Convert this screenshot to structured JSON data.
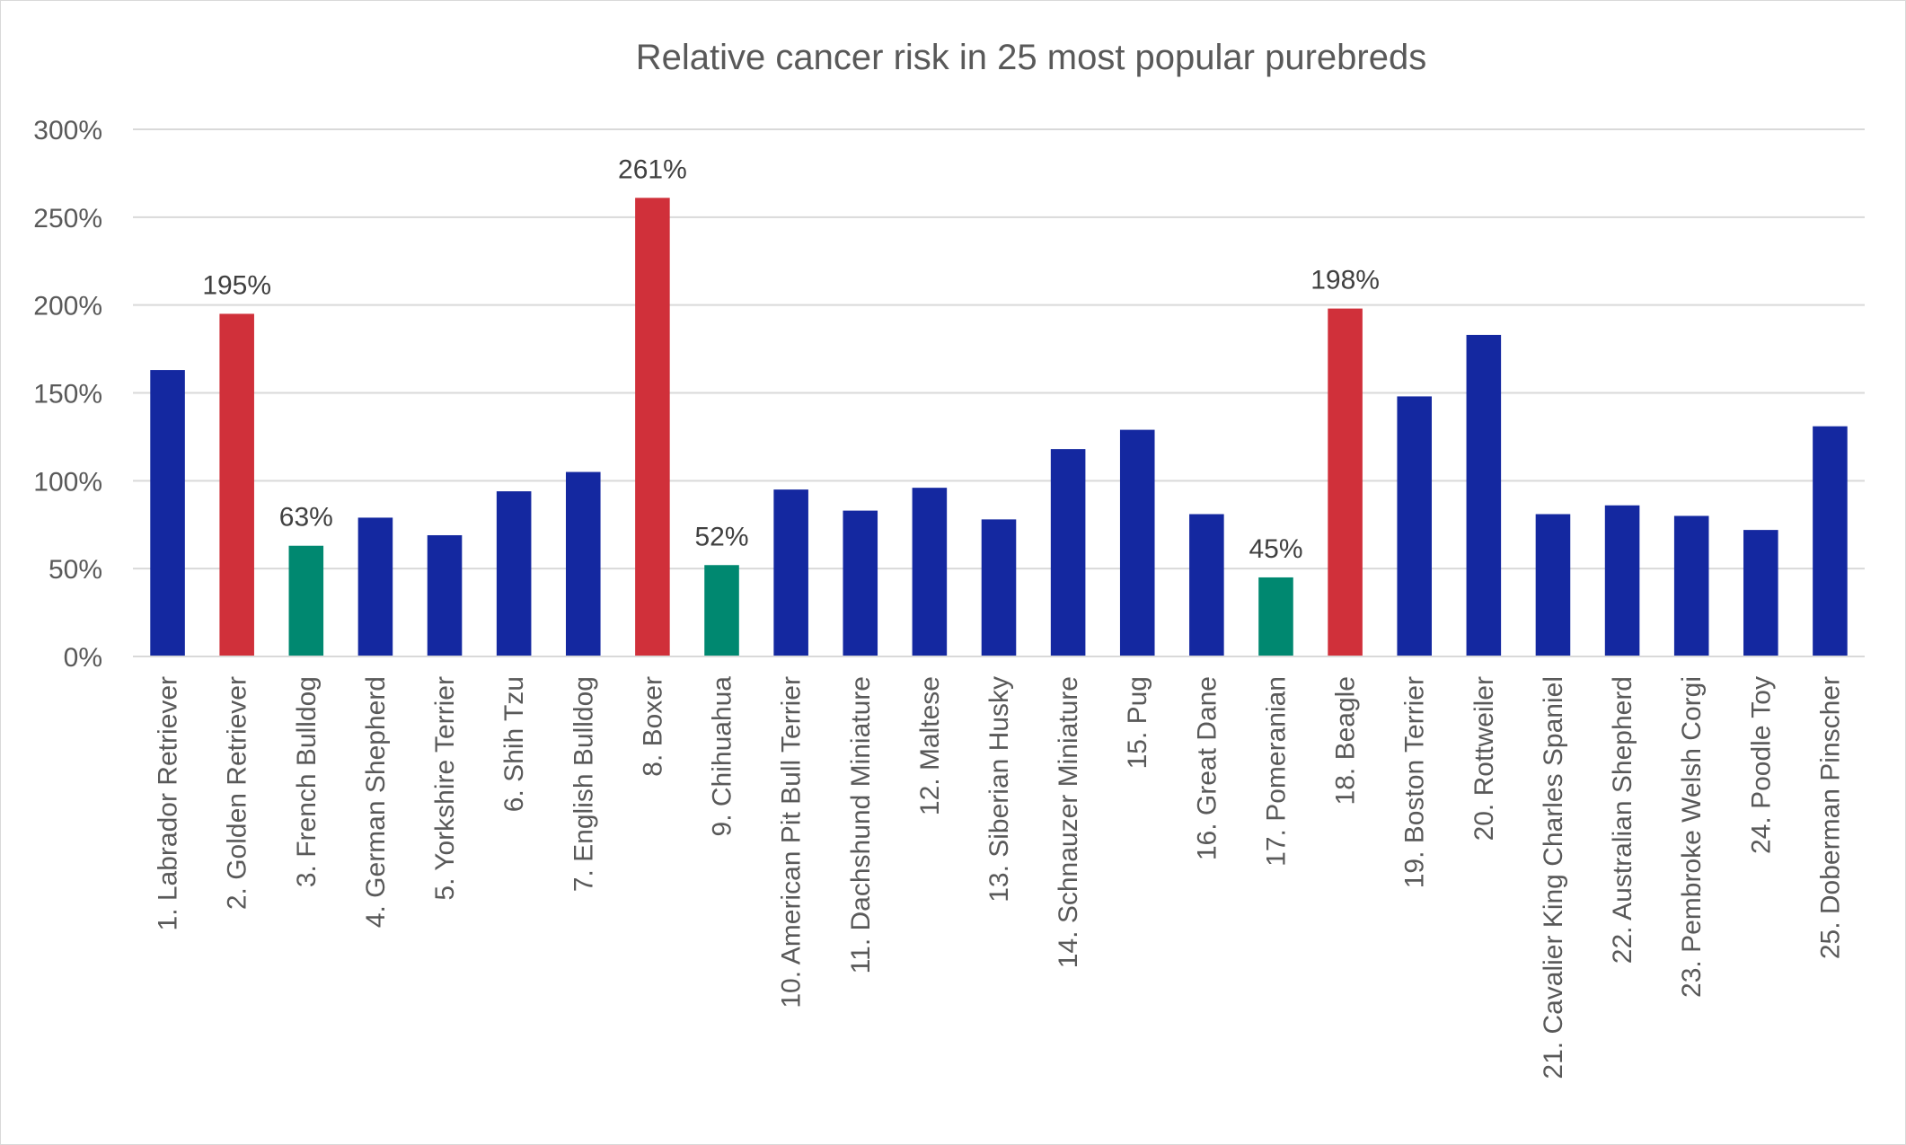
{
  "chart_data": {
    "type": "bar",
    "title": "Relative cancer risk in 25 most popular purebreds",
    "xlabel": "",
    "ylabel": "",
    "ylim": [
      0,
      300
    ],
    "yticks": [
      "0%",
      "50%",
      "100%",
      "150%",
      "200%",
      "250%",
      "300%"
    ],
    "grid": true,
    "legend": "none",
    "value_unit": "%",
    "categories": [
      "1. Labrador Retriever",
      "2. Golden Retriever",
      "3. French Bulldog",
      "4. German Shepherd",
      "5. Yorkshire Terrier",
      "6. Shih Tzu",
      "7. English Bulldog",
      "8. Boxer",
      "9. Chihuahua",
      "10. American Pit Bull Terrier",
      "11. Dachshund Miniature",
      "12. Maltese",
      "13. Siberian Husky",
      "14. Schnauzer Miniature",
      "15. Pug",
      "16. Great Dane",
      "17. Pomeranian",
      "18. Beagle",
      "19. Boston Terrier",
      "20. Rottweiler",
      "21. Cavalier King Charles Spaniel",
      "22. Australian Shepherd",
      "23. Pembroke Welsh Corgi",
      "24. Poodle Toy",
      "25. Doberman Pinscher"
    ],
    "values": [
      163,
      195,
      63,
      79,
      69,
      94,
      105,
      261,
      52,
      95,
      83,
      96,
      78,
      118,
      129,
      81,
      45,
      198,
      148,
      183,
      81,
      86,
      80,
      72,
      131
    ],
    "bar_groups": [
      "normal",
      "high",
      "low",
      "normal",
      "normal",
      "normal",
      "normal",
      "high",
      "low",
      "normal",
      "normal",
      "normal",
      "normal",
      "normal",
      "normal",
      "normal",
      "low",
      "high",
      "normal",
      "normal",
      "normal",
      "normal",
      "normal",
      "normal",
      "normal"
    ],
    "data_labels": [
      "",
      "195%",
      "63%",
      "",
      "",
      "",
      "",
      "261%",
      "52%",
      "",
      "",
      "",
      "",
      "",
      "",
      "",
      "45%",
      "198%",
      "",
      "",
      "",
      "",
      "",
      "",
      ""
    ],
    "colors": {
      "normal": "#1428a0",
      "high": "#d0303a",
      "low": "#008870",
      "grid": "#d9d9d9",
      "text": "#595959"
    }
  }
}
